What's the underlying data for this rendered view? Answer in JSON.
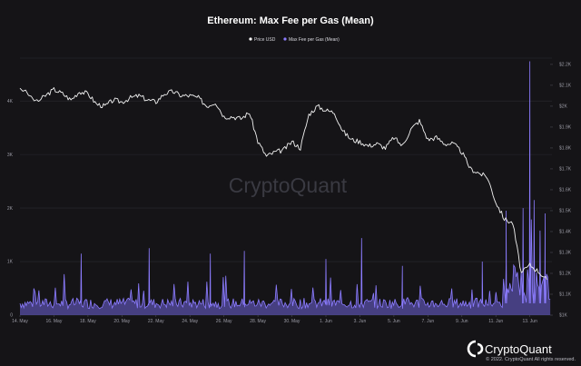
{
  "chart_data": {
    "type": "area",
    "title": "Ethereum: Max Fee per Gas (Mean)",
    "legend": [
      {
        "name": "Price USD",
        "color": "#ffffff"
      },
      {
        "name": "Max Fee per Gas (Mean)",
        "color": "#8c7cff"
      }
    ],
    "legend_position": "top-center",
    "x_tick_labels": [
      "14. May",
      "16. May",
      "18. May",
      "20. May",
      "22. May",
      "24. May",
      "26. May",
      "28. May",
      "30. May",
      "1. Jun",
      "3. Jun",
      "5. Jun",
      "7. Jun",
      "9. Jun",
      "11. Jun",
      "13. Jun"
    ],
    "left_axis": {
      "ticks": [
        "0",
        "1K",
        "2K",
        "3K",
        "4K"
      ],
      "ylim": [
        0,
        4800
      ]
    },
    "right_axis": {
      "ticks": [
        "$1K",
        "$1.1K",
        "$1.2K",
        "$1.3K",
        "$1.4K",
        "$1.5K",
        "$1.6K",
        "$1.7K",
        "$1.8K",
        "$1.9K",
        "$2K",
        "$2.1K",
        "$2.2K"
      ],
      "ylim": [
        1000,
        2230
      ]
    },
    "grid": true,
    "series": [
      {
        "name": "Price USD",
        "axis": "right",
        "x_day": [
          0,
          1,
          1.5,
          2,
          2.5,
          3,
          3.5,
          4,
          4.5,
          5,
          5.5,
          6,
          6.5,
          7,
          7.5,
          8,
          8.5,
          9,
          9.5,
          10,
          10.5,
          11,
          11.5,
          12,
          12.5,
          13,
          13.5,
          14,
          14.5,
          15,
          15.5,
          16,
          16.5,
          17,
          17.5,
          18,
          18.5,
          19,
          19.5,
          20,
          20.5,
          21,
          21.5,
          22,
          22.5,
          23,
          23.5,
          24,
          24.5,
          25,
          25.5,
          26,
          26.5,
          27,
          27.5,
          28,
          28.5,
          29,
          29.5,
          30,
          30.5,
          31
        ],
        "values": [
          2090,
          2020,
          2050,
          2080,
          2060,
          2030,
          2070,
          2060,
          2010,
          2000,
          2030,
          2020,
          2040,
          2050,
          2030,
          2020,
          2060,
          2070,
          2050,
          2050,
          2040,
          2000,
          2020,
          1950,
          1950,
          1940,
          1970,
          1830,
          1760,
          1780,
          1790,
          1830,
          1800,
          1960,
          2000,
          1980,
          1970,
          1880,
          1840,
          1830,
          1810,
          1820,
          1800,
          1850,
          1810,
          1890,
          1930,
          1840,
          1850,
          1820,
          1820,
          1780,
          1700,
          1680,
          1660,
          1540,
          1460,
          1440,
          1200,
          1240,
          1210,
          1170
        ]
      },
      {
        "name": "Max Fee per Gas (Mean)",
        "axis": "left",
        "baseline_approx": 220,
        "spikes": [
          {
            "x_day": 3.6,
            "value": 1150
          },
          {
            "x_day": 7.6,
            "value": 1250
          },
          {
            "x_day": 11.2,
            "value": 1150
          },
          {
            "x_day": 13.2,
            "value": 1200
          },
          {
            "x_day": 18.0,
            "value": 1050
          },
          {
            "x_day": 20.1,
            "value": 1440
          },
          {
            "x_day": 22.5,
            "value": 920
          },
          {
            "x_day": 27.2,
            "value": 1000
          },
          {
            "x_day": 28.6,
            "value": 1950
          },
          {
            "x_day": 29.6,
            "value": 2000
          },
          {
            "x_day": 30.0,
            "value": 4740
          },
          {
            "x_day": 30.25,
            "value": 2150
          },
          {
            "x_day": 30.6,
            "value": 1580
          },
          {
            "x_day": 30.9,
            "value": 1900
          }
        ]
      }
    ],
    "watermark": "CryptoQuant"
  },
  "footer": {
    "brand": "CryptoQuant",
    "copyright": "© 2022. CryptoQuant All rights reserved."
  }
}
